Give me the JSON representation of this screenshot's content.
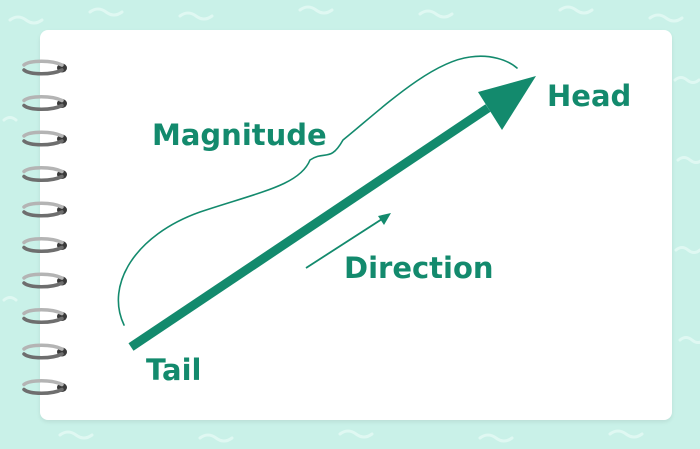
{
  "labels": {
    "head": "Head",
    "magnitude": "Magnitude",
    "direction": "Direction",
    "tail": "Tail"
  },
  "icons": {
    "binding": "spiral-binding-icon",
    "vector": "vector-arrow-icon",
    "direction": "direction-arrow-icon",
    "brace": "curly-brace-icon"
  },
  "colors": {
    "background": "#c9f1e8",
    "paper": "#ffffff",
    "accent": "#138a6d",
    "ring": "#8a8a8a"
  }
}
